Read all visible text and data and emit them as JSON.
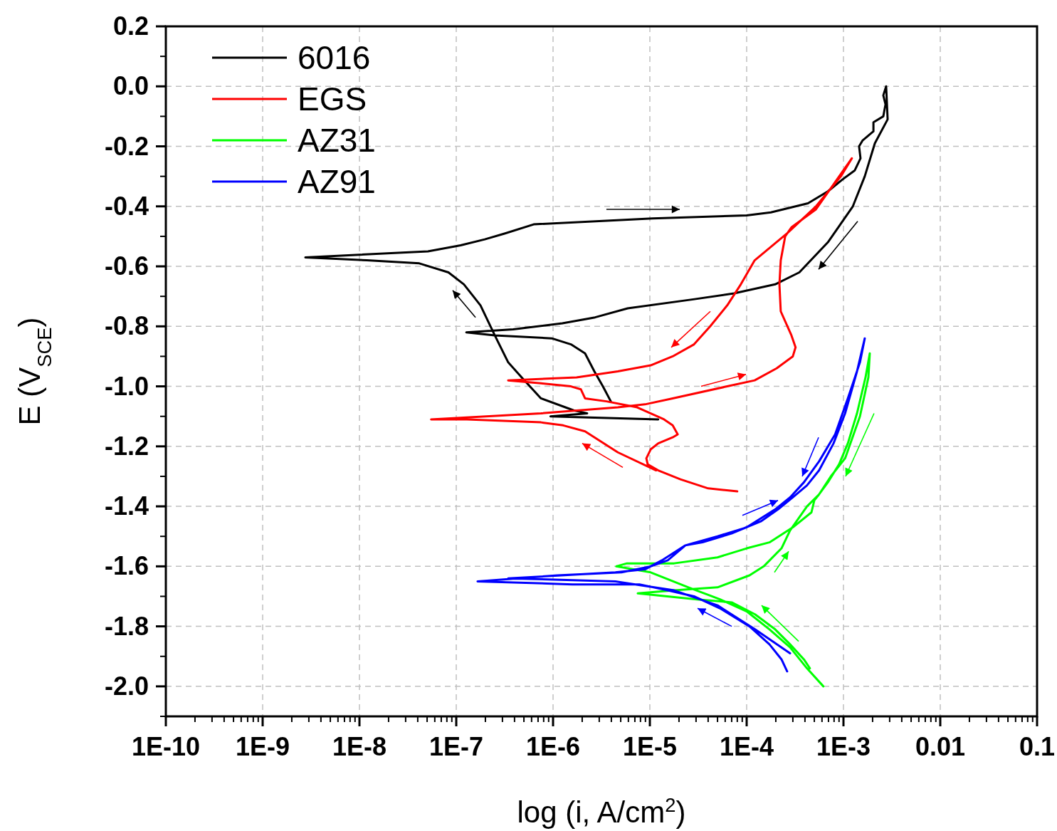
{
  "chart_data": {
    "type": "line",
    "xlabel": "log (i, A/cm$^{2}$)",
    "ylabel": "E (V$_{SCE}$)",
    "log": "x",
    "grid": true,
    "legend": "top left",
    "line_style": "solid",
    "marker": "none",
    "xlim": [
      1e-10,
      0.1
    ],
    "ylim": [
      -2.1,
      0.2
    ],
    "xticks": [
      {
        "value": 1e-10,
        "label": "1E-10"
      },
      {
        "value": 1e-09,
        "label": "1E-9"
      },
      {
        "value": 1e-08,
        "label": "1E-8"
      },
      {
        "value": 1e-07,
        "label": "1E-7"
      },
      {
        "value": 1e-06,
        "label": "1E-6"
      },
      {
        "value": 1e-05,
        "label": "1E-5"
      },
      {
        "value": 0.0001,
        "label": "1E-4"
      },
      {
        "value": 0.001,
        "label": "1E-3"
      },
      {
        "value": 0.01,
        "label": "0.01"
      },
      {
        "value": 0.1,
        "label": "0.1"
      }
    ],
    "yticks": [
      {
        "value": -2.1,
        "label": null
      },
      {
        "value": -2.0,
        "label": "-2.0"
      },
      {
        "value": -1.9,
        "label": null
      },
      -1.8,
      {
        "value": -1.7,
        "label": null
      },
      -1.6,
      {
        "value": -1.5,
        "label": null
      },
      -1.4,
      {
        "value": -1.3,
        "label": null
      },
      -1.2,
      {
        "value": -1.1,
        "label": null
      },
      {
        "value": -1.0,
        "label": "-1.0"
      },
      {
        "value": -0.9,
        "label": null
      },
      -0.8,
      {
        "value": -0.7,
        "label": null
      },
      -0.6,
      {
        "value": -0.5,
        "label": null
      },
      -0.4,
      {
        "value": -0.3,
        "label": null
      },
      -0.2,
      {
        "value": -0.1,
        "label": null
      },
      {
        "value": 0,
        "label": "0.0"
      },
      {
        "value": 0.1,
        "label": null
      },
      0.2
    ],
    "series": [
      {
        "name": "6016",
        "color": "#000000",
        "x": [
          1.22e-05,
          9.4e-07,
          2.25e-06,
          1.63e-06,
          7.5e-07,
          4.74e-07,
          3.44e-07,
          2.5e-07,
          1.78e-07,
          1.2e-07,
          8.3e-08,
          4.15e-08,
          1.19e-08,
          2.76e-09,
          5.1e-08,
          1.11e-07,
          1.97e-07,
          3.2e-07,
          6.3e-07,
          1.07e-05,
          0.0001,
          0.000178,
          0.00043,
          0.00069,
          0.00098,
          0.00131,
          0.0015,
          0.00145,
          0.00158,
          0.00204,
          0.00204,
          0.00258,
          0.00272,
          0.00258,
          0.00276,
          0.00286,
          0.00211,
          0.00166,
          0.00125,
          0.00069,
          0.00035,
          0.000197,
          7.4e-05,
          2.81e-05,
          5.9e-06,
          2.72e-06,
          1.25e-06,
          3.87e-07,
          1.27e-07,
          2.5e-07,
          9.7e-07,
          1.53e-06,
          2.14e-06,
          2.67e-06,
          3.27e-06,
          3.95e-06
        ],
        "values": [
          -1.11,
          -1.1,
          -1.09,
          -1.08,
          -1.04,
          -0.97,
          -0.92,
          -0.83,
          -0.73,
          -0.66,
          -0.62,
          -0.59,
          -0.58,
          -0.57,
          -0.55,
          -0.53,
          -0.51,
          -0.49,
          -0.46,
          -0.44,
          -0.43,
          -0.42,
          -0.39,
          -0.35,
          -0.31,
          -0.28,
          -0.24,
          -0.2,
          -0.18,
          -0.15,
          -0.12,
          -0.1,
          -0.06,
          -0.03,
          0.0,
          -0.11,
          -0.19,
          -0.3,
          -0.4,
          -0.52,
          -0.62,
          -0.66,
          -0.69,
          -0.71,
          -0.74,
          -0.77,
          -0.79,
          -0.81,
          -0.82,
          -0.83,
          -0.84,
          -0.86,
          -0.89,
          -0.95,
          -1.0,
          -1.05
        ]
      },
      {
        "name": "EGS",
        "color": "#ff0000",
        "x": [
          8e-05,
          4e-05,
          2.07e-05,
          1.22e-05,
          9.5e-06,
          9.2e-06,
          1.02e-05,
          1.22e-05,
          1.72e-05,
          1.94e-05,
          1.72e-05,
          1.4e-05,
          7.4e-06,
          3.56e-06,
          2.14e-06,
          1.94e-06,
          1.53e-06,
          7.5e-07,
          3.44e-07,
          1.75e-06,
          4.67e-06,
          1.02e-05,
          1.72e-05,
          2.86e-05,
          4.2e-05,
          6.3e-05,
          8.7e-05,
          0.000121,
          0.000262,
          0.00052,
          0.00094,
          0.00122,
          0.00052,
          0.00029,
          0.00025,
          0.000225,
          0.000218,
          0.000225,
          0.00029,
          0.00032,
          0.0003,
          0.000204,
          0.000121,
          6.3e-05,
          1.72e-05,
          8.9e-06,
          4.67e-06,
          7.5e-07,
          5.5e-08,
          1.29e-07,
          7.5e-07,
          1.27e-06,
          2.14e-06,
          4.67e-06,
          1.16e-05
        ],
        "values": [
          -1.35,
          -1.34,
          -1.31,
          -1.28,
          -1.26,
          -1.24,
          -1.21,
          -1.19,
          -1.17,
          -1.16,
          -1.13,
          -1.11,
          -1.07,
          -1.05,
          -1.04,
          -1.01,
          -1.0,
          -0.99,
          -0.98,
          -0.97,
          -0.95,
          -0.93,
          -0.9,
          -0.86,
          -0.8,
          -0.73,
          -0.66,
          -0.58,
          -0.49,
          -0.4,
          -0.3,
          -0.24,
          -0.41,
          -0.47,
          -0.5,
          -0.58,
          -0.66,
          -0.75,
          -0.83,
          -0.87,
          -0.9,
          -0.94,
          -0.98,
          -1.0,
          -1.04,
          -1.06,
          -1.07,
          -1.09,
          -1.11,
          -1.11,
          -1.12,
          -1.13,
          -1.15,
          -1.22,
          -1.28
        ]
      },
      {
        "name": "AZ31",
        "color": "#00ff00",
        "x": [
          0.00062,
          0.00042,
          0.000281,
          0.000172,
          0.0001,
          5.3e-05,
          2.5e-05,
          1.02e-05,
          4.5e-06,
          5.8e-06,
          1.78e-05,
          5e-05,
          0.0001,
          0.000172,
          0.0003,
          0.000467,
          0.0005,
          0.00056,
          0.00069,
          0.0009,
          0.00111,
          0.00138,
          0.00169,
          0.00187,
          0.00181,
          0.00148,
          0.00104,
          0.00074,
          0.00056,
          0.00042,
          0.000281,
          0.000229,
          0.00015,
          0.000107,
          5e-05,
          1.78e-05,
          7.5e-06,
          3.05e-05,
          7e-05,
          0.000122,
          0.000197,
          0.000281,
          0.00039,
          0.00045
        ],
        "values": [
          -2.0,
          -1.94,
          -1.87,
          -1.81,
          -1.75,
          -1.71,
          -1.67,
          -1.62,
          -1.6,
          -1.59,
          -1.59,
          -1.57,
          -1.54,
          -1.52,
          -1.47,
          -1.42,
          -1.38,
          -1.36,
          -1.32,
          -1.26,
          -1.19,
          -1.09,
          -0.97,
          -0.89,
          -0.97,
          -1.1,
          -1.24,
          -1.3,
          -1.36,
          -1.4,
          -1.48,
          -1.54,
          -1.6,
          -1.63,
          -1.67,
          -1.68,
          -1.69,
          -1.71,
          -1.72,
          -1.76,
          -1.81,
          -1.86,
          -1.91,
          -1.94
        ]
      },
      {
        "name": "AZ91",
        "color": "#0000ff",
        "x": [
          0.000262,
          0.000229,
          0.000172,
          0.000107,
          5.3e-05,
          2.86e-05,
          1.53e-05,
          7.8e-06,
          1.58e-06,
          1.66e-07,
          1.11e-06,
          5.1e-06,
          1.02e-05,
          1.53e-05,
          2.33e-05,
          3.5e-05,
          7e-05,
          0.00014,
          0.000211,
          0.0003,
          0.00042,
          0.00056,
          0.00079,
          0.00104,
          0.00138,
          0.00166,
          0.00148,
          0.00111,
          0.00082,
          0.00056,
          0.00039,
          0.000281,
          0.000197,
          0.0001,
          5e-05,
          2.33e-05,
          1.33e-05,
          8.9e-06,
          4.4e-06,
          3.44e-07,
          4.4e-06,
          1.78e-05,
          5e-05,
          0.000122,
          0.000281
        ],
        "values": [
          -1.95,
          -1.91,
          -1.86,
          -1.8,
          -1.74,
          -1.7,
          -1.68,
          -1.66,
          -1.66,
          -1.65,
          -1.63,
          -1.62,
          -1.6,
          -1.58,
          -1.53,
          -1.52,
          -1.49,
          -1.45,
          -1.41,
          -1.37,
          -1.33,
          -1.28,
          -1.19,
          -1.09,
          -0.95,
          -0.84,
          -0.92,
          -1.04,
          -1.16,
          -1.25,
          -1.32,
          -1.37,
          -1.41,
          -1.47,
          -1.5,
          -1.53,
          -1.58,
          -1.61,
          -1.62,
          -1.64,
          -1.65,
          -1.68,
          -1.73,
          -1.81,
          -1.89
        ]
      }
    ]
  }
}
